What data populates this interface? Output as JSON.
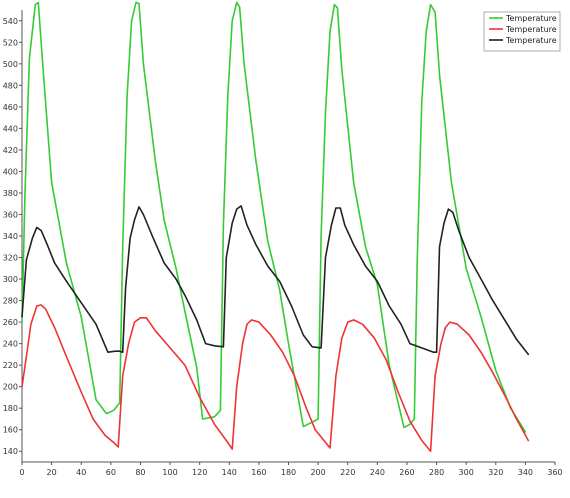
{
  "chart_data": {
    "type": "line",
    "xlim": [
      0,
      360
    ],
    "ylim": [
      130,
      550
    ],
    "x_ticks": [
      0,
      20,
      40,
      60,
      80,
      100,
      120,
      140,
      160,
      180,
      200,
      220,
      240,
      260,
      280,
      300,
      320,
      340,
      360
    ],
    "y_ticks": [
      140,
      160,
      180,
      200,
      220,
      240,
      260,
      280,
      300,
      320,
      340,
      360,
      380,
      400,
      420,
      440,
      460,
      480,
      500,
      520,
      540
    ],
    "grid": false,
    "legend_position": "top-right",
    "series": [
      {
        "name": "Temperature",
        "color": "#33cc33",
        "points": [
          [
            0,
            260
          ],
          [
            2,
            380
          ],
          [
            5,
            505
          ],
          [
            9,
            555
          ],
          [
            11,
            557
          ],
          [
            14,
            500
          ],
          [
            20,
            390
          ],
          [
            30,
            315
          ],
          [
            40,
            265
          ],
          [
            50,
            188
          ],
          [
            57,
            175
          ],
          [
            62,
            178
          ],
          [
            66,
            185
          ],
          [
            68,
            330
          ],
          [
            71,
            470
          ],
          [
            74,
            540
          ],
          [
            77,
            557
          ],
          [
            79,
            556
          ],
          [
            82,
            500
          ],
          [
            90,
            410
          ],
          [
            96,
            355
          ],
          [
            104,
            310
          ],
          [
            110,
            270
          ],
          [
            118,
            218
          ],
          [
            122,
            170
          ],
          [
            130,
            172
          ],
          [
            134,
            178
          ],
          [
            136,
            350
          ],
          [
            139,
            470
          ],
          [
            142,
            540
          ],
          [
            145,
            557
          ],
          [
            147,
            553
          ],
          [
            150,
            500
          ],
          [
            158,
            410
          ],
          [
            166,
            335
          ],
          [
            174,
            290
          ],
          [
            180,
            240
          ],
          [
            190,
            163
          ],
          [
            196,
            167
          ],
          [
            200,
            170
          ],
          [
            202,
            340
          ],
          [
            205,
            455
          ],
          [
            208,
            530
          ],
          [
            211,
            555
          ],
          [
            213,
            552
          ],
          [
            216,
            495
          ],
          [
            224,
            390
          ],
          [
            232,
            330
          ],
          [
            240,
            295
          ],
          [
            248,
            220
          ],
          [
            258,
            162
          ],
          [
            262,
            165
          ],
          [
            265,
            170
          ],
          [
            267,
            320
          ],
          [
            270,
            465
          ],
          [
            273,
            530
          ],
          [
            276,
            555
          ],
          [
            279,
            548
          ],
          [
            282,
            490
          ],
          [
            290,
            390
          ],
          [
            300,
            310
          ],
          [
            310,
            265
          ],
          [
            320,
            215
          ],
          [
            330,
            180
          ],
          [
            340,
            158
          ]
        ]
      },
      {
        "name": "Temperature",
        "color": "#ee3333",
        "points": [
          [
            0,
            200
          ],
          [
            3,
            228
          ],
          [
            6,
            258
          ],
          [
            10,
            275
          ],
          [
            13,
            276
          ],
          [
            16,
            272
          ],
          [
            22,
            255
          ],
          [
            30,
            228
          ],
          [
            40,
            195
          ],
          [
            48,
            170
          ],
          [
            56,
            155
          ],
          [
            62,
            148
          ],
          [
            65,
            144
          ],
          [
            68,
            210
          ],
          [
            72,
            240
          ],
          [
            76,
            260
          ],
          [
            80,
            264
          ],
          [
            84,
            264
          ],
          [
            90,
            252
          ],
          [
            100,
            236
          ],
          [
            110,
            220
          ],
          [
            120,
            190
          ],
          [
            130,
            165
          ],
          [
            138,
            150
          ],
          [
            142,
            142
          ],
          [
            145,
            200
          ],
          [
            149,
            240
          ],
          [
            152,
            258
          ],
          [
            155,
            262
          ],
          [
            160,
            260
          ],
          [
            168,
            248
          ],
          [
            176,
            232
          ],
          [
            184,
            210
          ],
          [
            192,
            180
          ],
          [
            198,
            160
          ],
          [
            204,
            150
          ],
          [
            208,
            143
          ],
          [
            212,
            210
          ],
          [
            216,
            245
          ],
          [
            220,
            260
          ],
          [
            224,
            262
          ],
          [
            230,
            258
          ],
          [
            238,
            245
          ],
          [
            246,
            225
          ],
          [
            254,
            195
          ],
          [
            262,
            168
          ],
          [
            270,
            150
          ],
          [
            276,
            140
          ],
          [
            279,
            210
          ],
          [
            283,
            240
          ],
          [
            286,
            255
          ],
          [
            289,
            260
          ],
          [
            294,
            258
          ],
          [
            302,
            248
          ],
          [
            310,
            232
          ],
          [
            318,
            213
          ],
          [
            326,
            192
          ],
          [
            334,
            170
          ],
          [
            342,
            150
          ]
        ]
      },
      {
        "name": "Temperature",
        "color": "#222222",
        "points": [
          [
            0,
            265
          ],
          [
            3,
            318
          ],
          [
            7,
            338
          ],
          [
            10,
            348
          ],
          [
            13,
            345
          ],
          [
            17,
            332
          ],
          [
            22,
            315
          ],
          [
            30,
            298
          ],
          [
            40,
            278
          ],
          [
            50,
            258
          ],
          [
            58,
            232
          ],
          [
            63,
            233
          ],
          [
            66,
            233
          ],
          [
            68,
            232
          ],
          [
            70,
            292
          ],
          [
            73,
            338
          ],
          [
            76,
            355
          ],
          [
            79,
            367
          ],
          [
            82,
            360
          ],
          [
            88,
            340
          ],
          [
            96,
            315
          ],
          [
            104,
            300
          ],
          [
            110,
            285
          ],
          [
            118,
            262
          ],
          [
            124,
            240
          ],
          [
            130,
            238
          ],
          [
            136,
            237
          ],
          [
            138,
            320
          ],
          [
            142,
            352
          ],
          [
            145,
            365
          ],
          [
            148,
            368
          ],
          [
            152,
            350
          ],
          [
            158,
            332
          ],
          [
            166,
            312
          ],
          [
            174,
            298
          ],
          [
            182,
            275
          ],
          [
            190,
            248
          ],
          [
            196,
            237
          ],
          [
            202,
            236
          ],
          [
            205,
            320
          ],
          [
            209,
            350
          ],
          [
            212,
            366
          ],
          [
            215,
            366
          ],
          [
            218,
            350
          ],
          [
            224,
            332
          ],
          [
            232,
            312
          ],
          [
            240,
            298
          ],
          [
            248,
            275
          ],
          [
            256,
            258
          ],
          [
            262,
            240
          ],
          [
            270,
            236
          ],
          [
            278,
            232
          ],
          [
            280,
            232
          ],
          [
            282,
            330
          ],
          [
            285,
            352
          ],
          [
            288,
            365
          ],
          [
            291,
            362
          ],
          [
            295,
            345
          ],
          [
            302,
            320
          ],
          [
            310,
            300
          ],
          [
            318,
            280
          ],
          [
            326,
            262
          ],
          [
            334,
            244
          ],
          [
            342,
            230
          ]
        ]
      }
    ]
  }
}
